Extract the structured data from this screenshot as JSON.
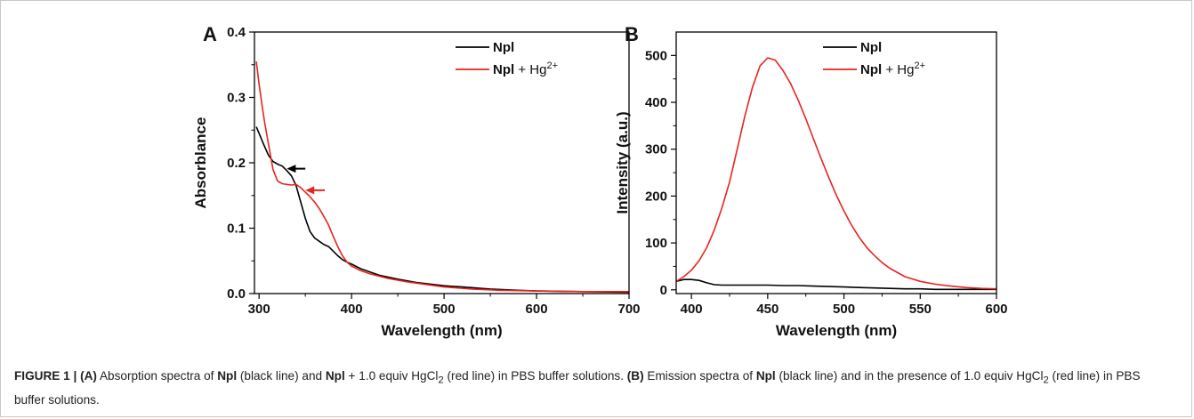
{
  "chart_data": [
    {
      "panel": "A",
      "type": "line",
      "xlabel": "Wavelength (nm)",
      "ylabel": "Absorblance",
      "xlim": [
        295,
        700
      ],
      "ylim": [
        0.0,
        0.4
      ],
      "xticks": [
        300,
        400,
        500,
        600,
        700
      ],
      "yticks": [
        0.0,
        0.1,
        0.2,
        0.3,
        0.4
      ],
      "ytick_labels": [
        "0.0",
        "0.1",
        "0.2",
        "0.3",
        "0.4"
      ],
      "legend_position": "top-right",
      "series": [
        {
          "name": "Npl",
          "legend_main": "Npl",
          "legend_rest": "",
          "color": "#000000",
          "x": [
            297,
            300,
            305,
            310,
            315,
            320,
            325,
            330,
            335,
            340,
            345,
            350,
            355,
            360,
            365,
            370,
            375,
            380,
            385,
            390,
            395,
            400,
            410,
            420,
            430,
            450,
            470,
            500,
            520,
            550,
            580,
            600,
            650,
            700
          ],
          "y": [
            0.255,
            0.245,
            0.228,
            0.212,
            0.202,
            0.198,
            0.195,
            0.188,
            0.18,
            0.165,
            0.14,
            0.115,
            0.095,
            0.085,
            0.08,
            0.075,
            0.072,
            0.065,
            0.058,
            0.052,
            0.048,
            0.045,
            0.038,
            0.033,
            0.028,
            0.022,
            0.017,
            0.012,
            0.01,
            0.007,
            0.005,
            0.004,
            0.003,
            0.002
          ]
        },
        {
          "name": "Npl + Hg2+",
          "legend_main": "Npl",
          "legend_rest": " + Hg",
          "legend_sup": "2+",
          "color": "#e8231f",
          "x": [
            297,
            300,
            303,
            306,
            310,
            315,
            320,
            325,
            330,
            335,
            340,
            345,
            350,
            355,
            360,
            365,
            370,
            375,
            380,
            385,
            390,
            395,
            400,
            410,
            420,
            440,
            460,
            480,
            500,
            530,
            560,
            600,
            650,
            700
          ],
          "y": [
            0.355,
            0.32,
            0.29,
            0.262,
            0.23,
            0.19,
            0.172,
            0.168,
            0.167,
            0.166,
            0.167,
            0.162,
            0.155,
            0.148,
            0.14,
            0.13,
            0.118,
            0.105,
            0.088,
            0.072,
            0.058,
            0.048,
            0.042,
            0.035,
            0.03,
            0.023,
            0.018,
            0.014,
            0.01,
            0.007,
            0.005,
            0.004,
            0.003,
            0.003
          ]
        }
      ],
      "annotations": [
        {
          "type": "arrow",
          "color": "#000000",
          "direction": "left",
          "at_x": 330,
          "at_y": 0.191,
          "from_x": 350
        },
        {
          "type": "arrow",
          "color": "#e8231f",
          "direction": "left",
          "at_x": 350,
          "at_y": 0.158,
          "from_x": 371
        }
      ]
    },
    {
      "panel": "B",
      "type": "line",
      "xlabel": "Wavelength (nm)",
      "ylabel": "Intensity (a.u.)",
      "xlim": [
        390,
        600
      ],
      "ylim": [
        -8,
        550
      ],
      "xticks": [
        400,
        450,
        500,
        550,
        600
      ],
      "yticks": [
        0,
        100,
        200,
        300,
        400,
        500
      ],
      "ytick_labels": [
        "0",
        "100",
        "200",
        "300",
        "400",
        "500"
      ],
      "legend_position": "top-right",
      "series": [
        {
          "name": "Npl",
          "legend_main": "Npl",
          "legend_rest": "",
          "color": "#000000",
          "x": [
            390,
            395,
            400,
            405,
            410,
            415,
            420,
            430,
            440,
            450,
            460,
            470,
            480,
            490,
            500,
            510,
            520,
            530,
            540,
            550,
            560,
            580,
            600
          ],
          "y": [
            18,
            22,
            22,
            20,
            15,
            11,
            10,
            10,
            10,
            10,
            9,
            9,
            8,
            7,
            6,
            5,
            4,
            3,
            2,
            2,
            1,
            1,
            1
          ]
        },
        {
          "name": "Npl + Hg2+",
          "legend_main": "Npl",
          "legend_rest": " + Hg",
          "legend_sup": "2+",
          "color": "#e8231f",
          "x": [
            390,
            395,
            400,
            405,
            410,
            415,
            420,
            425,
            430,
            435,
            440,
            445,
            450,
            455,
            460,
            465,
            470,
            475,
            480,
            485,
            490,
            495,
            500,
            505,
            510,
            515,
            520,
            525,
            530,
            540,
            550,
            560,
            570,
            580,
            590,
            600
          ],
          "y": [
            18,
            28,
            42,
            62,
            90,
            128,
            175,
            230,
            300,
            370,
            432,
            478,
            495,
            490,
            468,
            440,
            405,
            365,
            322,
            280,
            240,
            202,
            168,
            138,
            112,
            90,
            73,
            58,
            46,
            28,
            18,
            12,
            8,
            5,
            3,
            2
          ]
        }
      ]
    }
  ],
  "caption": {
    "figure_label": "FIGURE 1 | ",
    "a_tag": "(A)",
    "a_text_1": " Absorption spectra of ",
    "a_compound_1": "Npl",
    "a_text_2": " (black line) and ",
    "a_compound_2": "Npl",
    "a_text_3": " + 1.0 equiv HgCl",
    "a_sub": "2",
    "a_text_4": " (red line) in PBS buffer solutions. ",
    "b_tag": "(B)",
    "b_text_1": " Emission spectra of ",
    "b_compound": "Npl",
    "b_text_2": " (black line) and in the presence of 1.0 equiv HgCl",
    "b_sub": "2",
    "b_text_3": " (red line) in PBS buffer solutions."
  }
}
